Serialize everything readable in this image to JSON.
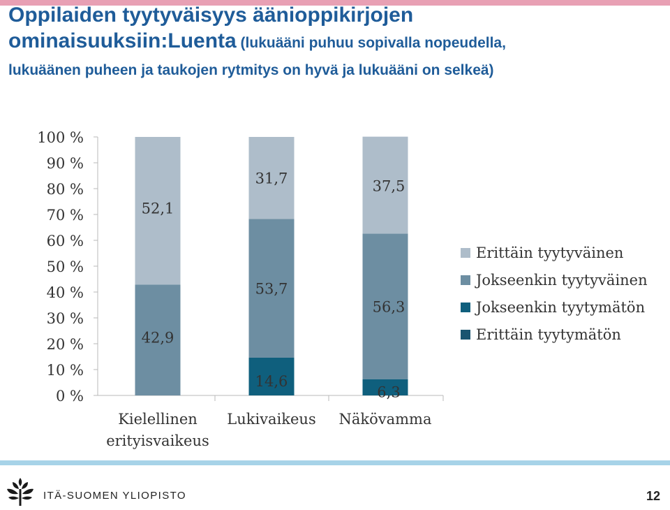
{
  "header": {
    "title_line1": "Oppilaiden tyytyväisyys äänioppikirjojen",
    "title_line2_main": "ominaisuuksiin:Luenta",
    "title_line2_sub": " (lukuääni puhuu sopivalla nopeudella,",
    "title_line3": "lukuäänen puheen ja taukojen rytmitys on hyvä ja lukuääni on selkeä)"
  },
  "chart_data": {
    "type": "bar",
    "stacked": true,
    "percent_stacked": true,
    "categories": [
      [
        "Kielellinen",
        "erityisvaikeus"
      ],
      [
        "Lukivaikeus"
      ],
      [
        "Näkövamma"
      ]
    ],
    "series": [
      {
        "name": "Erittäin tyytymätön",
        "values": [
          0,
          0,
          0
        ],
        "color": "#1a5470"
      },
      {
        "name": "Jokseenkin tyytymätön",
        "values": [
          0,
          14.6,
          6.3
        ],
        "color": "#0f5f7d"
      },
      {
        "name": "Jokseenkin tyytyväinen",
        "values": [
          42.9,
          53.7,
          56.3
        ],
        "color": "#6d8ea2"
      },
      {
        "name": "Erittäin tyytyväinen",
        "values": [
          52.1,
          31.7,
          37.5
        ],
        "color": "#aebdca"
      }
    ],
    "y_ticks": [
      "0 %",
      "10 %",
      "20 %",
      "30 %",
      "40 %",
      "50 %",
      "60 %",
      "70 %",
      "80 %",
      "90 %",
      "100 %"
    ],
    "ylim": [
      0,
      100
    ],
    "grid": false,
    "legend_position": "right"
  },
  "footer": {
    "logo_text": "ITÄ-SUOMEN YLIOPISTO",
    "page_number": "12"
  }
}
